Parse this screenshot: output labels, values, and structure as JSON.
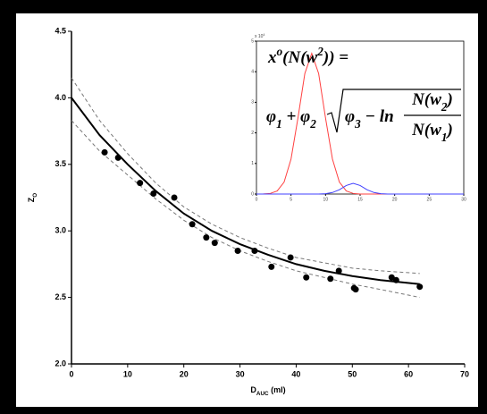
{
  "chart_data": [
    {
      "type": "scatter",
      "x_label": [
        "D",
        "AUC",
        " (ml)"
      ],
      "y_label": [
        "Z",
        "O"
      ],
      "x": [
        5.9,
        8.3,
        12.2,
        14.6,
        18.3,
        21.5,
        24.0,
        25.5,
        29.6,
        32.6,
        35.6,
        39.0,
        41.8,
        46.1,
        47.6,
        50.3,
        50.6,
        57.0,
        57.8,
        62.0
      ],
      "values": [
        3.59,
        3.55,
        3.36,
        3.28,
        3.25,
        3.05,
        2.95,
        2.91,
        2.85,
        2.85,
        2.73,
        2.8,
        2.65,
        2.64,
        2.7,
        2.57,
        2.56,
        2.65,
        2.63,
        2.58
      ],
      "color": "#000000",
      "lines": [
        {
          "x": [
            0,
            5,
            10,
            15,
            20,
            25,
            30,
            35,
            40,
            45,
            50,
            55,
            62
          ],
          "values": [
            4.0,
            3.72,
            3.5,
            3.3,
            3.13,
            3.0,
            2.9,
            2.82,
            2.75,
            2.7,
            2.66,
            2.63,
            2.6
          ],
          "color": "#000000",
          "dash": false
        },
        {
          "x": [
            0,
            5,
            10,
            15,
            20,
            25,
            30,
            35,
            40,
            45,
            50,
            55,
            62
          ],
          "values": [
            4.15,
            3.83,
            3.58,
            3.36,
            3.18,
            3.05,
            2.95,
            2.87,
            2.8,
            2.76,
            2.72,
            2.7,
            2.68
          ],
          "color": "#777777",
          "dash": true
        },
        {
          "x": [
            0,
            5,
            10,
            15,
            20,
            25,
            30,
            35,
            40,
            45,
            50,
            55,
            62
          ],
          "values": [
            3.83,
            3.6,
            3.42,
            3.24,
            3.08,
            2.95,
            2.85,
            2.77,
            2.7,
            2.65,
            2.6,
            2.56,
            2.5
          ],
          "color": "#777777",
          "dash": true
        }
      ],
      "xlim": [
        0,
        70
      ],
      "xticks": [
        0,
        10,
        20,
        30,
        40,
        50,
        60,
        70
      ],
      "ylim": [
        2.0,
        4.5
      ],
      "yticks": [
        {
          "value": 2.0,
          "label": "2.0"
        },
        2.5,
        {
          "value": 3.0,
          "label": "3.0"
        },
        3.5,
        {
          "value": 4.0,
          "label": "4.0"
        },
        4.5
      ]
    },
    {
      "type": "line",
      "x": [
        0,
        1,
        2,
        3,
        4,
        5,
        6,
        7,
        8,
        9,
        10,
        11,
        12,
        13,
        14,
        15,
        16,
        17,
        18,
        19,
        20,
        21,
        22,
        23,
        24,
        25,
        26,
        27,
        28,
        29,
        30
      ],
      "series": [
        {
          "color": "#ff4040",
          "values": [
            0,
            0.002,
            0.02,
            0.1,
            0.39,
            1.14,
            2.48,
            3.94,
            4.6,
            3.94,
            2.48,
            1.14,
            0.39,
            0.1,
            0.02,
            0,
            0,
            0,
            0,
            0,
            0,
            0,
            0,
            0,
            0,
            0,
            0,
            0,
            0,
            0,
            0
          ]
        },
        {
          "color": "#4040ff",
          "values": [
            0,
            0,
            0,
            0,
            0,
            0,
            0,
            0,
            0,
            0,
            0.01,
            0.05,
            0.14,
            0.28,
            0.35,
            0.28,
            0.14,
            0.05,
            0.01,
            0,
            0,
            0,
            0,
            0,
            0,
            0,
            0,
            0,
            0,
            0,
            0
          ]
        }
      ],
      "y_multiplier": [
        "x 10",
        "4"
      ],
      "xlim": [
        0,
        30
      ],
      "xticks": [
        0,
        5,
        10,
        15,
        20,
        25,
        30
      ],
      "ylim": [
        0,
        5
      ],
      "yticks": [
        0,
        1,
        2,
        3,
        4,
        5
      ],
      "formula": {
        "line1": [
          "x",
          "o",
          "(N(w",
          "2",
          ")) ="
        ],
        "lead": [
          "φ",
          "1",
          " + φ",
          "2"
        ],
        "root": [
          "φ",
          "3",
          " − ln"
        ],
        "numerator": [
          "N(w",
          "2",
          ")"
        ],
        "denominator": [
          "N(w",
          "1",
          ")"
        ]
      }
    }
  ]
}
